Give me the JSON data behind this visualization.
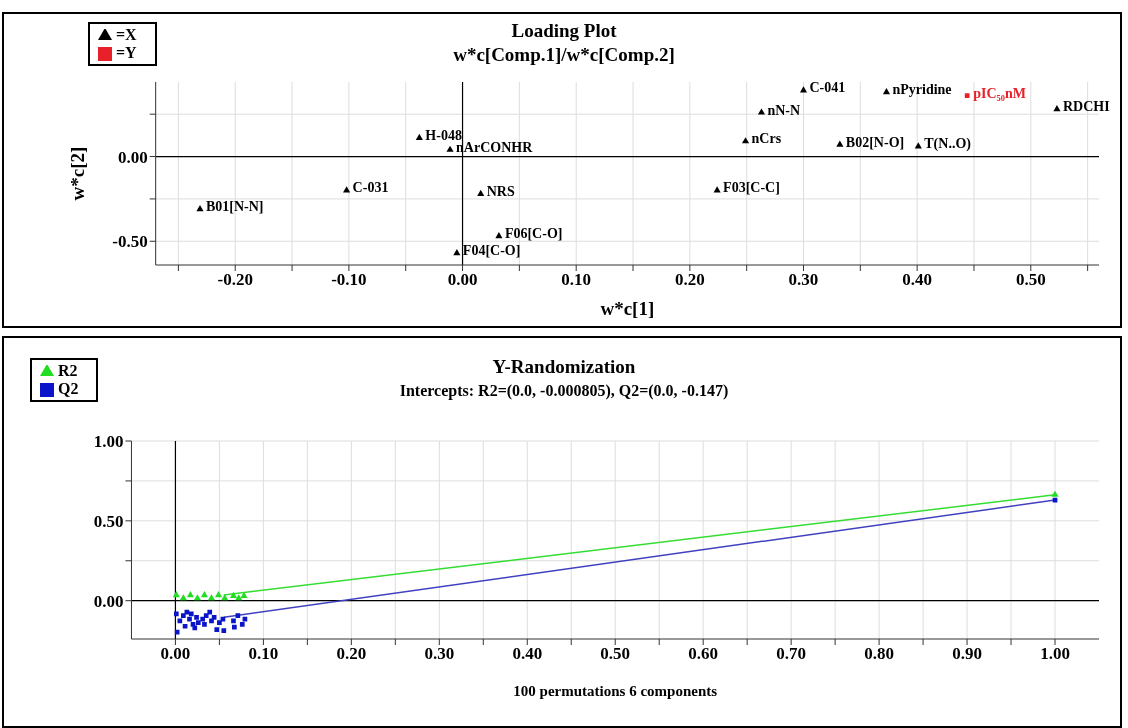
{
  "chart_data": [
    {
      "type": "scatter",
      "title": "Loading Plot",
      "subtitle": "w*c[Comp.1]/w*c[Comp.2]",
      "xlabel": "w*c[1]",
      "ylabel": "w*c[2]",
      "xlim": [
        -0.27,
        0.56
      ],
      "ylim": [
        -0.64,
        0.44
      ],
      "xticks": [
        {
          "value": -0.25,
          "label": null
        },
        {
          "value": -0.2,
          "label": "-0.20"
        },
        {
          "value": -0.15,
          "label": null
        },
        {
          "value": -0.1,
          "label": "-0.10"
        },
        {
          "value": -0.05,
          "label": null
        },
        {
          "value": 0,
          "label": "0.00"
        },
        {
          "value": 0.05,
          "label": null
        },
        {
          "value": 0.1,
          "label": "0.10"
        },
        {
          "value": 0.15,
          "label": null
        },
        {
          "value": 0.2,
          "label": "0.20"
        },
        {
          "value": 0.25,
          "label": null
        },
        {
          "value": 0.3,
          "label": "0.30"
        },
        {
          "value": 0.35,
          "label": null
        },
        {
          "value": 0.4,
          "label": "0.40"
        },
        {
          "value": 0.45,
          "label": null
        },
        {
          "value": 0.5,
          "label": "0.50"
        },
        {
          "value": 0.55,
          "label": null
        }
      ],
      "yticks": [
        {
          "value": -0.5,
          "label": "-0.50"
        },
        {
          "value": -0.25,
          "label": null
        },
        {
          "value": 0,
          "label": "0.00"
        },
        {
          "value": 0.25,
          "label": null
        }
      ],
      "grid": true,
      "legend": "top left",
      "series": [
        {
          "type": "line",
          "color": "#000000",
          "x": [
            -0.27,
            0.56
          ],
          "values": [
            0,
            0
          ]
        },
        {
          "type": "line",
          "color": "#000000",
          "x": [
            0,
            0
          ],
          "values": [
            -0.64,
            0.44
          ]
        },
        {
          "name": "=X",
          "color": "#000000",
          "marker": "triangle",
          "x": [
            -0.231,
            -0.102,
            -0.038,
            -0.011,
            0.016,
            0.032,
            -0.005,
            0.3,
            0.263,
            0.249,
            0.224,
            0.373,
            0.523,
            0.332,
            0.401
          ],
          "values": [
            -0.31,
            -0.2,
            0.11,
            0.04,
            -0.22,
            -0.47,
            -0.57,
            0.39,
            0.26,
            0.09,
            -0.2,
            0.38,
            0.28,
            0.07,
            0.06
          ],
          "value_labels": [
            "B01[N-N]",
            "C-031",
            "H-048",
            "nArCONHR",
            "NRS",
            "F06[C-O]",
            "F04[C-O]",
            "C-041",
            "nN-N",
            "nCrs",
            "F03[C-C]",
            "nPyridine",
            "RDCHI",
            "B02[N-O]",
            "T(N..O)"
          ]
        },
        {
          "name": "=Y",
          "color": "#e8202a",
          "marker": "square",
          "x": [
            0.444
          ],
          "values": [
            0.36
          ],
          "value_labels": [
            "pIC₅₀nM"
          ]
        }
      ]
    },
    {
      "type": "scatter",
      "title": "Y-Randomization",
      "subtitle": "Intercepts: R2=(0.0, -0.000805), Q2=(0.0, -0.147)",
      "xlabel": "100 permutations 6 components",
      "xlim": [
        -0.05,
        1.05
      ],
      "ylim": [
        -0.24,
        1.0
      ],
      "xticks": [
        {
          "value": 0,
          "label": "0.00"
        },
        {
          "value": 0.05,
          "label": null
        },
        {
          "value": 0.1,
          "label": "0.10"
        },
        {
          "value": 0.15,
          "label": null
        },
        {
          "value": 0.2,
          "label": "0.20"
        },
        {
          "value": 0.25,
          "label": null
        },
        {
          "value": 0.3,
          "label": "0.30"
        },
        {
          "value": 0.35,
          "label": null
        },
        {
          "value": 0.4,
          "label": "0.40"
        },
        {
          "value": 0.45,
          "label": null
        },
        {
          "value": 0.5,
          "label": "0.50"
        },
        {
          "value": 0.55,
          "label": null
        },
        {
          "value": 0.6,
          "label": "0.60"
        },
        {
          "value": 0.65,
          "label": null
        },
        {
          "value": 0.7,
          "label": "0.70"
        },
        {
          "value": 0.75,
          "label": null
        },
        {
          "value": 0.8,
          "label": "0.80"
        },
        {
          "value": 0.85,
          "label": null
        },
        {
          "value": 0.9,
          "label": "0.90"
        },
        {
          "value": 0.95,
          "label": null
        },
        {
          "value": 1.0,
          "label": "1.00"
        }
      ],
      "yticks": [
        {
          "value": 0,
          "label": "0.00"
        },
        {
          "value": 0.25,
          "label": null
        },
        {
          "value": 0.5,
          "label": "0.50"
        },
        {
          "value": 0.75,
          "label": null
        },
        {
          "value": 1.0,
          "label": "1.00"
        }
      ],
      "grid": true,
      "legend": "top left",
      "series": [
        {
          "type": "line",
          "color": "#000000",
          "x": [
            -0.05,
            1.05
          ],
          "values": [
            0,
            0
          ]
        },
        {
          "type": "line",
          "color": "#000000",
          "x": [
            0,
            0
          ],
          "values": [
            -0.24,
            1.0
          ]
        },
        {
          "name": "R2",
          "color": "#22dd22",
          "marker": "triangle",
          "x": [
            0.001,
            0.009,
            0.017,
            0.025,
            0.033,
            0.041,
            0.049,
            0.056,
            0.066,
            0.072,
            0.078,
            1.0
          ],
          "values": [
            0.035,
            0.015,
            0.035,
            0.015,
            0.035,
            0.015,
            0.035,
            0.015,
            0.03,
            0.015,
            0.03,
            0.663
          ]
        },
        {
          "name": "Q2",
          "color": "#0a14c8",
          "marker": "square",
          "x": [
            0.001,
            0.002,
            0.005,
            0.009,
            0.011,
            0.013,
            0.016,
            0.018,
            0.02,
            0.022,
            0.024,
            0.026,
            0.031,
            0.033,
            0.035,
            0.039,
            0.041,
            0.044,
            0.047,
            0.05,
            0.054,
            0.055,
            0.066,
            0.067,
            0.071,
            0.076,
            0.079,
            1.0
          ],
          "values": [
            -0.083,
            -0.197,
            -0.127,
            -0.094,
            -0.16,
            -0.072,
            -0.116,
            -0.083,
            -0.149,
            -0.17,
            -0.105,
            -0.138,
            -0.116,
            -0.149,
            -0.094,
            -0.072,
            -0.127,
            -0.105,
            -0.181,
            -0.138,
            -0.116,
            -0.188,
            -0.127,
            -0.166,
            -0.094,
            -0.149,
            -0.116,
            0.63
          ]
        },
        {
          "type": "line",
          "color": "#33dd33",
          "x": [
            0.055,
            1.0
          ],
          "values": [
            0.036,
            0.663
          ]
        },
        {
          "type": "line",
          "color": "#4040c0",
          "x": [
            0.055,
            1.0
          ],
          "values": [
            -0.104,
            0.63
          ]
        }
      ]
    }
  ]
}
